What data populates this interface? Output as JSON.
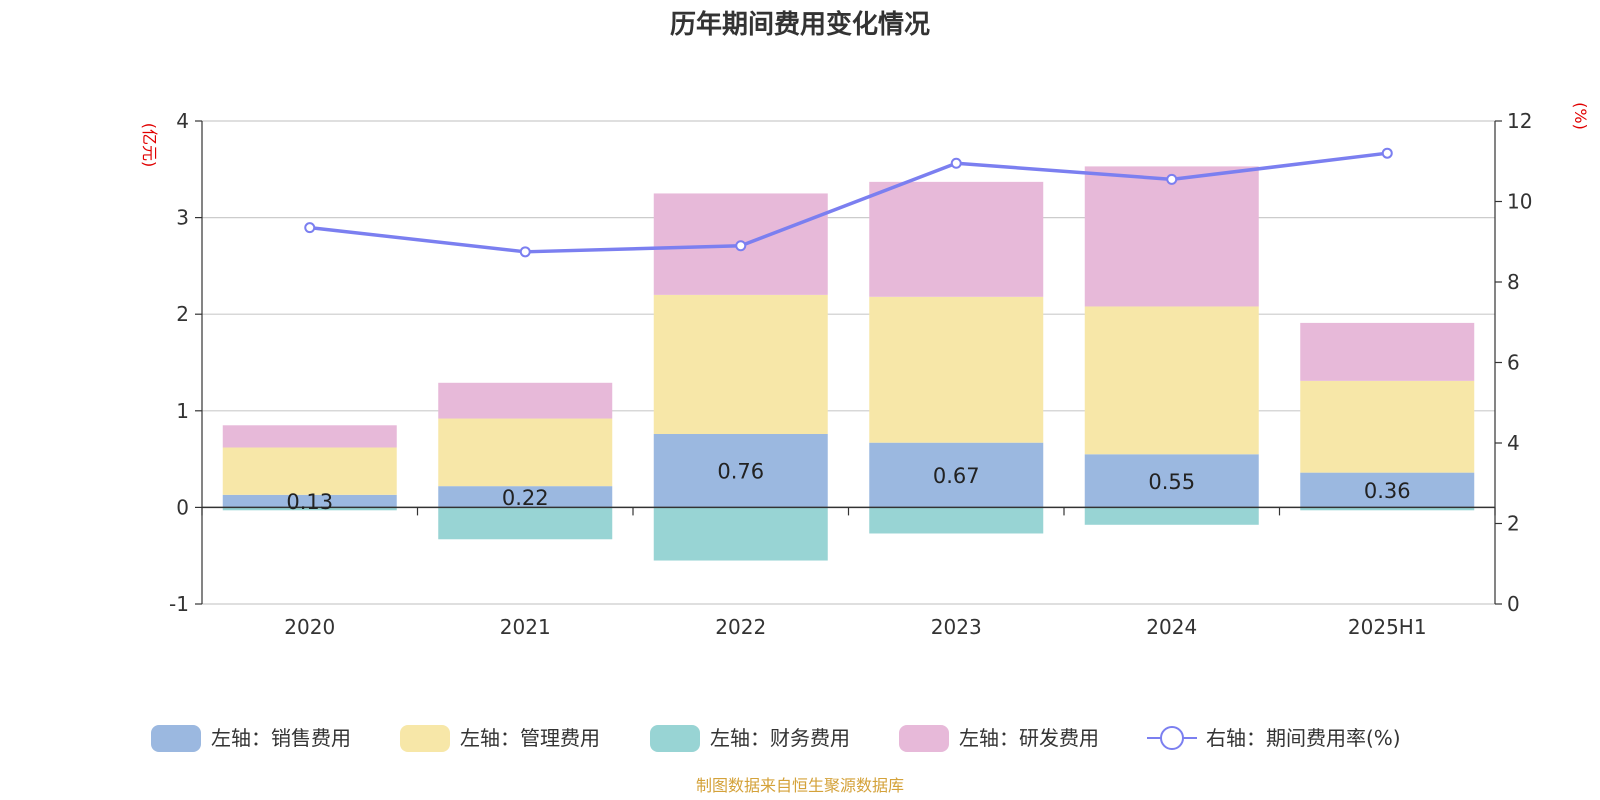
{
  "chart_data": {
    "type": "bar",
    "title": "历年期间费用变化情况",
    "categories": [
      "2020",
      "2021",
      "2022",
      "2023",
      "2024",
      "2025H1"
    ],
    "left_axis": {
      "unit_label": "(亿元)",
      "ylim": [
        -1,
        4
      ],
      "ticks": [
        "-1",
        "0",
        "1",
        "2",
        "3",
        "4"
      ]
    },
    "right_axis": {
      "unit_label": "(%)",
      "ylim": [
        0,
        12
      ],
      "ticks": [
        "0",
        "2",
        "4",
        "6",
        "8",
        "10",
        "12"
      ]
    },
    "grid": true,
    "legend_position": "bottom",
    "series": [
      {
        "name": "左轴：销售费用",
        "type": "bar",
        "axis": "left",
        "color": "#9bb8e0",
        "values": [
          0.13,
          0.22,
          0.76,
          0.67,
          0.55,
          0.36
        ],
        "data_labels": [
          "0.13",
          "0.22",
          "0.76",
          "0.67",
          "0.55",
          "0.36"
        ]
      },
      {
        "name": "左轴：管理费用",
        "type": "bar",
        "axis": "left",
        "color": "#f7e7a8",
        "values": [
          0.49,
          0.7,
          1.44,
          1.51,
          1.53,
          0.95
        ]
      },
      {
        "name": "左轴：财务费用",
        "type": "bar",
        "axis": "left",
        "color": "#98d4d4",
        "values": [
          -0.03,
          -0.33,
          -0.55,
          -0.27,
          -0.18,
          -0.03
        ]
      },
      {
        "name": "左轴：研发费用",
        "type": "bar",
        "axis": "left",
        "color": "#e7b9d9",
        "values": [
          0.23,
          0.37,
          1.05,
          1.19,
          1.45,
          0.6
        ]
      },
      {
        "name": "右轴：期间费用率(%)",
        "type": "line",
        "axis": "right",
        "color": "#7b7ff0",
        "values": [
          9.35,
          8.75,
          8.9,
          10.95,
          10.55,
          11.2
        ]
      }
    ]
  },
  "source_text": "制图数据来自恒生聚源数据库",
  "source_color": "#d4a23a"
}
